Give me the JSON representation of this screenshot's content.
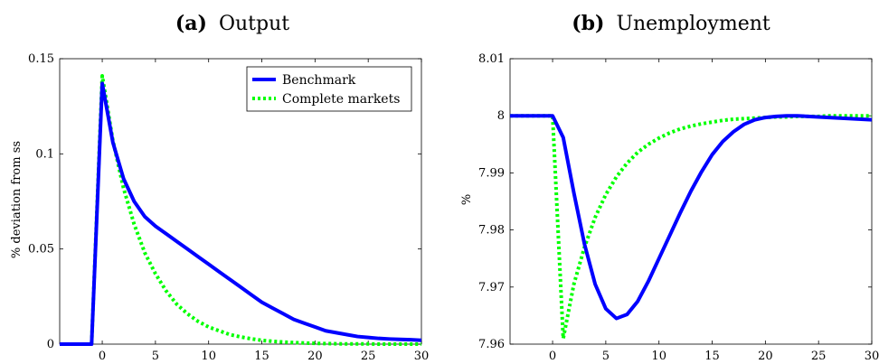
{
  "chart_data": [
    {
      "type": "line",
      "label": "(a)",
      "title": "Output",
      "xlabel": "",
      "ylabel": "% deviation from ss",
      "xlim": [
        -4,
        30
      ],
      "ylim": [
        0,
        0.15
      ],
      "xticks": [
        0,
        5,
        10,
        15,
        20,
        25,
        30
      ],
      "yticks": [
        0,
        0.05,
        0.1,
        0.15
      ],
      "ytick_labels": [
        "0",
        "0.05",
        "0.1",
        "0.15"
      ],
      "legend_position": "top-right",
      "series": [
        {
          "name": "Benchmark",
          "color": "#0000ff",
          "style": "solid",
          "x": [
            -4,
            -3,
            -2,
            -1,
            0,
            1,
            2,
            3,
            4,
            5,
            6,
            7,
            8,
            9,
            10,
            11,
            12,
            13,
            14,
            15,
            16,
            17,
            18,
            19,
            20,
            21,
            22,
            23,
            24,
            25,
            26,
            27,
            28,
            29,
            30
          ],
          "y": [
            0,
            0,
            0,
            0,
            0.137,
            0.106,
            0.087,
            0.075,
            0.067,
            0.062,
            0.058,
            0.054,
            0.05,
            0.046,
            0.042,
            0.038,
            0.034,
            0.03,
            0.026,
            0.022,
            0.019,
            0.016,
            0.013,
            0.011,
            0.009,
            0.007,
            0.006,
            0.005,
            0.004,
            0.0035,
            0.003,
            0.0027,
            0.0025,
            0.0023,
            0.002
          ]
        },
        {
          "name": "Complete markets",
          "color": "#00ff00",
          "style": "dotted",
          "x": [
            -4,
            -3,
            -2,
            -1,
            0,
            1,
            2,
            3,
            4,
            5,
            6,
            7,
            8,
            9,
            10,
            11,
            12,
            13,
            14,
            15,
            16,
            17,
            18,
            19,
            20,
            21,
            22,
            23,
            24,
            25,
            26,
            27,
            28,
            29,
            30
          ],
          "y": [
            0,
            0,
            0,
            0,
            0.141,
            0.107,
            0.082,
            0.063,
            0.048,
            0.037,
            0.028,
            0.021,
            0.016,
            0.012,
            0.009,
            0.007,
            0.005,
            0.0038,
            0.0028,
            0.002,
            0.0015,
            0.0011,
            0.0008,
            0.0006,
            0.0004,
            0.0003,
            0.0002,
            0.0001,
            0.0001,
            0.0001,
            0,
            0,
            0,
            0,
            0
          ]
        }
      ]
    },
    {
      "type": "line",
      "label": "(b)",
      "title": "Unemployment",
      "xlabel": "",
      "ylabel": "%",
      "xlim": [
        -4,
        30
      ],
      "ylim": [
        7.96,
        8.01
      ],
      "xticks": [
        0,
        5,
        10,
        15,
        20,
        25,
        30
      ],
      "yticks": [
        7.96,
        7.97,
        7.98,
        7.99,
        8,
        8.01
      ],
      "ytick_labels": [
        "7.96",
        "7.97",
        "7.98",
        "7.99",
        "8",
        "8.01"
      ],
      "series": [
        {
          "name": "Benchmark",
          "color": "#0000ff",
          "style": "solid",
          "x": [
            -4,
            -3,
            -2,
            -1,
            0,
            1,
            2,
            3,
            4,
            5,
            6,
            7,
            8,
            9,
            10,
            11,
            12,
            13,
            14,
            15,
            16,
            17,
            18,
            19,
            20,
            21,
            22,
            23,
            24,
            25,
            26,
            27,
            28,
            29,
            30
          ],
          "y": [
            8,
            8,
            8,
            8,
            8,
            7.9962,
            7.9865,
            7.9775,
            7.9705,
            7.9662,
            7.9645,
            7.9652,
            7.9675,
            7.971,
            7.975,
            7.979,
            7.983,
            7.9868,
            7.9902,
            7.9932,
            7.9955,
            7.9972,
            7.9985,
            7.9993,
            7.9997,
            7.9999,
            8,
            8,
            7.9999,
            7.9998,
            7.9997,
            7.9996,
            7.9995,
            7.9994,
            7.9993
          ]
        },
        {
          "name": "Complete markets",
          "color": "#00ff00",
          "style": "dotted",
          "x": [
            -4,
            -3,
            -2,
            -1,
            0,
            1,
            2,
            3,
            4,
            5,
            6,
            7,
            8,
            9,
            10,
            11,
            12,
            13,
            14,
            15,
            16,
            17,
            18,
            19,
            20,
            21,
            22,
            23,
            24,
            25,
            26,
            27,
            28,
            29,
            30
          ],
          "y": [
            8,
            8,
            8,
            8,
            8,
            7.961,
            7.9705,
            7.977,
            7.9822,
            7.9862,
            7.9893,
            7.9917,
            7.9936,
            7.995,
            7.9961,
            7.997,
            7.9977,
            7.9982,
            7.9986,
            7.9989,
            7.9992,
            7.9994,
            7.9995,
            7.9996,
            7.9997,
            7.9998,
            7.9998,
            7.9999,
            7.9999,
            7.9999,
            8,
            8,
            8,
            8,
            8
          ]
        }
      ]
    }
  ]
}
